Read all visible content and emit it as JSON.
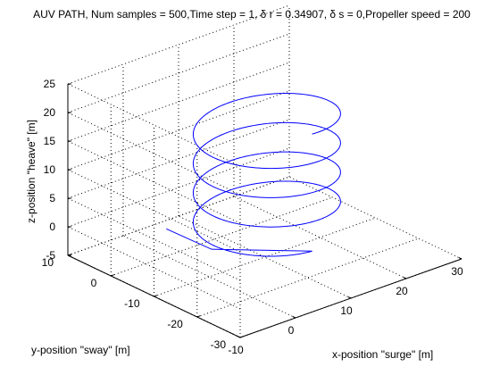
{
  "chart_data": {
    "type": "line",
    "projection": "3d",
    "title": "AUV PATH, Num samples = 500,Time step = 1, δ r = 0.34907, δ s = 0,Propeller speed = 200",
    "xlabel": "x-position \"surge\"  [m]",
    "ylabel": "y-position \"sway\"  [m]",
    "zlabel": "z-position \"heave\"  [m]",
    "xlim": [
      -10,
      30
    ],
    "ylim": [
      -30,
      10
    ],
    "zlim": [
      -5,
      25
    ],
    "xticks": [
      "-10",
      "0",
      "10",
      "20",
      "30"
    ],
    "yticks": [
      "-30",
      "-20",
      "-10",
      "0",
      "10"
    ],
    "zticks": [
      "-5",
      "0",
      "5",
      "10",
      "15",
      "20",
      "25"
    ],
    "grid": true,
    "series": [
      {
        "color": "#0000ff",
        "path": {
          "start": [
            0,
            0,
            -0.2
          ],
          "lead_in_end": [
            0,
            -10.5,
            0
          ],
          "circle_center_x": 10,
          "circle_center_y": -10.5,
          "radius": 10.5,
          "z_start": 0,
          "z_end": 20.5,
          "turns": 4
        }
      }
    ]
  }
}
